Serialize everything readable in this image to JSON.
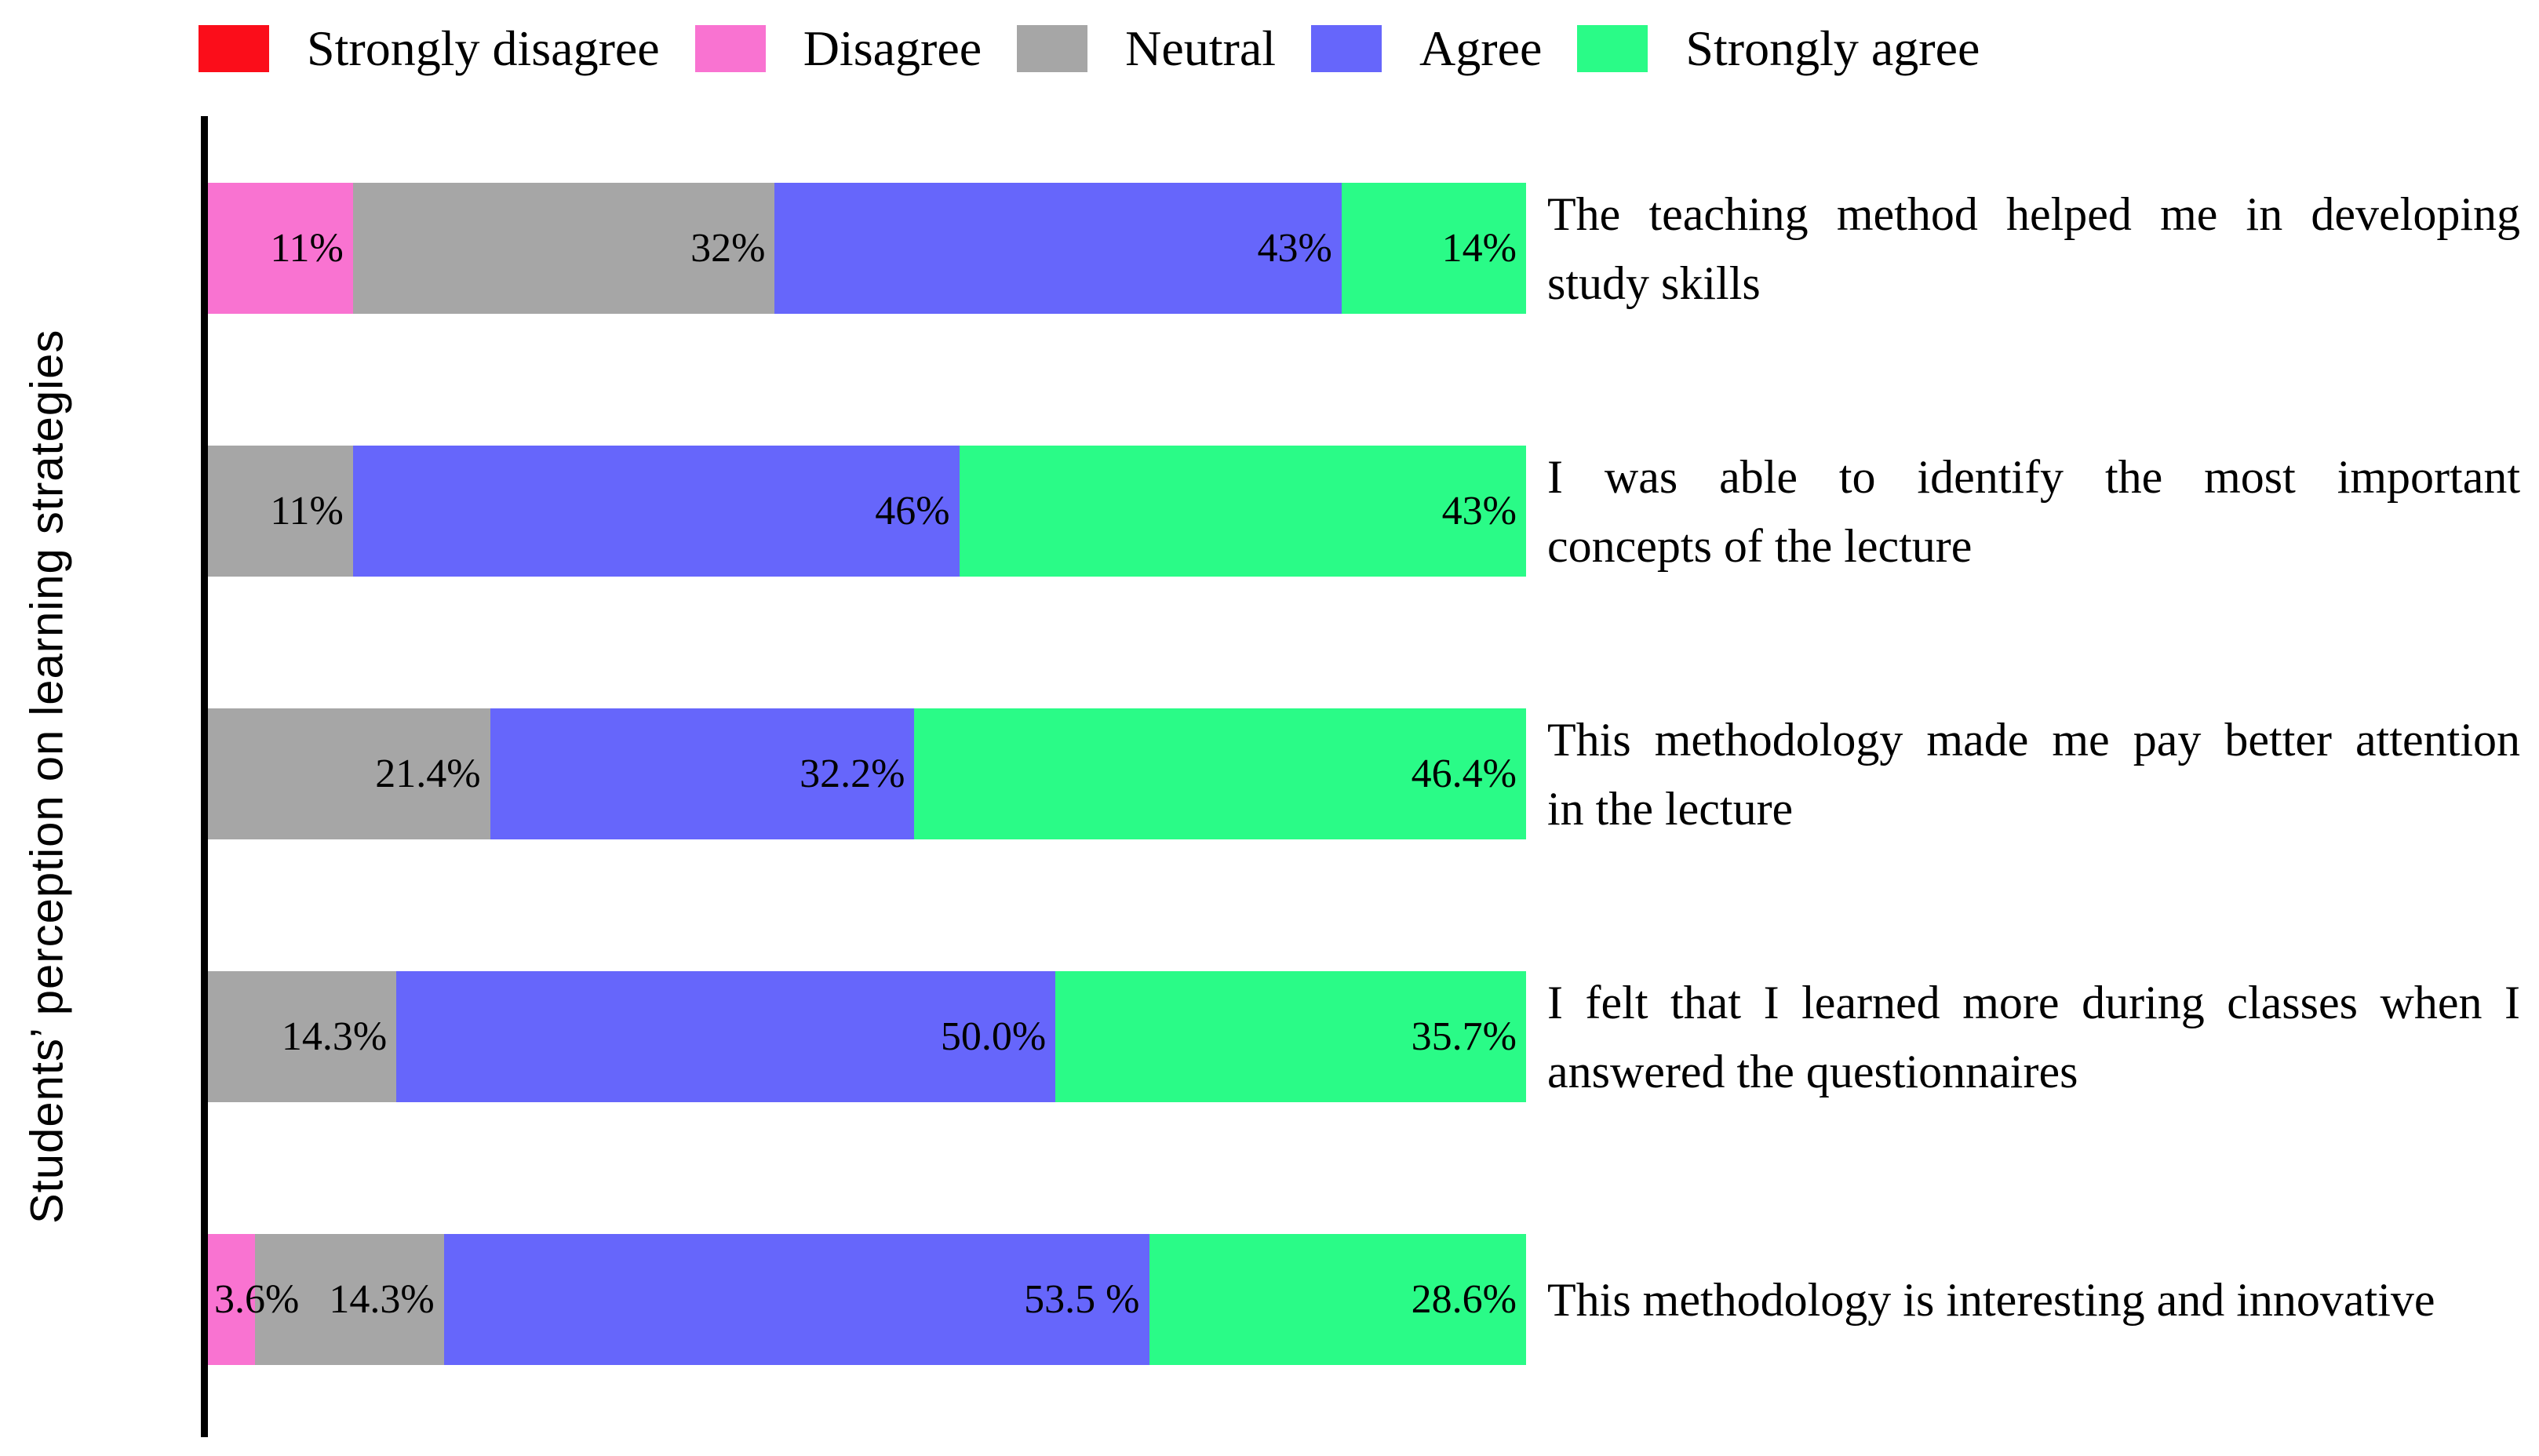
{
  "page": {
    "background": "#FFFFFF"
  },
  "chart_data": {
    "type": "bar",
    "orientation": "horizontal",
    "stacked": true,
    "grid": false,
    "unit": "percent",
    "xlim": [
      0,
      100
    ],
    "ylabel": "Students’ perception on learning strategies",
    "legend": {
      "position": "top",
      "entries": [
        "Strongly disagree",
        "Disagree",
        "Neutral",
        "Agree",
        "Strongly agree"
      ]
    },
    "categories": [
      "The teaching method helped me in developing study skills",
      "I was able to identify the most important concepts of the lecture",
      "This methodology made me pay better attention in the lecture",
      "I felt that I learned more during classes when I answered the questionnaires",
      "This methodology is interesting and innovative"
    ],
    "category_lines": [
      [
        "The teaching method helped me in developing",
        "study skills"
      ],
      [
        "I was able to identify the most important",
        "concepts of the lecture"
      ],
      [
        "This methodology made me pay better attention",
        "in the lecture"
      ],
      [
        "I felt that I learned more during classes when I",
        "answered the questionnaires"
      ],
      [
        "This methodology is interesting and innovative"
      ]
    ],
    "series": [
      {
        "name": "Strongly disagree",
        "color": "#FB0D1A",
        "values": [
          0,
          0,
          0,
          0,
          0
        ],
        "labels": [
          "",
          "",
          "",
          "",
          ""
        ]
      },
      {
        "name": "Disagree",
        "color": "#F973D1",
        "values": [
          11,
          0,
          0,
          0,
          3.6
        ],
        "labels": [
          "11%",
          "",
          "",
          "",
          "3.6%"
        ]
      },
      {
        "name": "Neutral",
        "color": "#A6A6A6",
        "values": [
          32,
          11,
          21.4,
          14.3,
          14.3
        ],
        "labels": [
          "32%",
          "11%",
          "21.4%",
          "14.3%",
          "14.3%"
        ]
      },
      {
        "name": "Agree",
        "color": "#6666FB",
        "values": [
          43,
          46,
          32.2,
          50.0,
          53.5
        ],
        "labels": [
          "43%",
          "46%",
          "32.2%",
          "50.0%",
          "53.5 %"
        ]
      },
      {
        "name": "Strongly agree",
        "color": "#2AFB87",
        "values": [
          14,
          43,
          46.4,
          35.7,
          28.6
        ],
        "labels": [
          "14%",
          "43%",
          "46.4%",
          "35.7%",
          "28.6%"
        ]
      }
    ]
  }
}
